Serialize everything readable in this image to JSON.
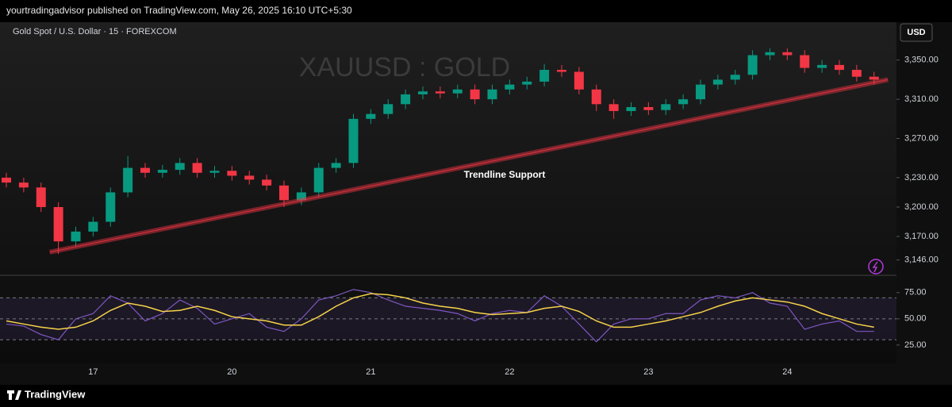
{
  "header": {
    "published": "yourtradingadvisor published on TradingView.com, May 26, 2025 16:10 UTC+5:30",
    "currency": "USD"
  },
  "footer": {
    "brand": "TradingView"
  },
  "chart_data": [
    {
      "type": "candlestick",
      "title": "Gold Spot / U.S. Dollar · 15 · FOREXCOM",
      "watermark": "XAUUSD : GOLD",
      "categories": [
        null,
        null,
        null,
        null,
        null,
        "17",
        null,
        null,
        null,
        null,
        null,
        null,
        null,
        "20",
        null,
        null,
        null,
        null,
        null,
        null,
        null,
        "21",
        null,
        null,
        null,
        null,
        null,
        null,
        null,
        "22",
        null,
        null,
        null,
        null,
        null,
        null,
        null,
        "23",
        null,
        null,
        null,
        null,
        null,
        null,
        null,
        "24",
        null,
        null,
        null,
        null,
        null
      ],
      "open": [
        3230,
        3225,
        3220,
        3200,
        3165,
        3175,
        3185,
        3215,
        3240,
        3235,
        3238,
        3245,
        3235,
        3237,
        3232,
        3228,
        3222,
        3207,
        3215,
        3240,
        3245,
        3290,
        3295,
        3305,
        3315,
        3318,
        3316,
        3320,
        3310,
        3320,
        3325,
        3328,
        3340,
        3338,
        3320,
        3305,
        3298,
        3302,
        3299,
        3305,
        3310,
        3325,
        3330,
        3335,
        3355,
        3358,
        3355,
        3342,
        3345,
        3340,
        3333
      ],
      "high": [
        3235,
        3230,
        3225,
        3205,
        3180,
        3190,
        3220,
        3252,
        3245,
        3243,
        3250,
        3250,
        3242,
        3242,
        3237,
        3233,
        3227,
        3220,
        3245,
        3250,
        3295,
        3300,
        3310,
        3320,
        3323,
        3323,
        3325,
        3325,
        3325,
        3330,
        3333,
        3346,
        3345,
        3343,
        3325,
        3310,
        3307,
        3307,
        3310,
        3315,
        3330,
        3335,
        3340,
        3360,
        3362,
        3362,
        3360,
        3350,
        3350,
        3345,
        3338
      ],
      "low": [
        3220,
        3215,
        3195,
        3152,
        3160,
        3170,
        3180,
        3210,
        3230,
        3230,
        3233,
        3230,
        3230,
        3227,
        3223,
        3217,
        3200,
        3202,
        3210,
        3235,
        3240,
        3285,
        3290,
        3300,
        3310,
        3311,
        3311,
        3305,
        3305,
        3315,
        3320,
        3323,
        3333,
        3315,
        3298,
        3290,
        3293,
        3294,
        3294,
        3300,
        3305,
        3320,
        3325,
        3330,
        3350,
        3350,
        3337,
        3337,
        3335,
        3328,
        3325
      ],
      "close": [
        3225,
        3220,
        3200,
        3165,
        3175,
        3185,
        3215,
        3240,
        3235,
        3238,
        3245,
        3235,
        3237,
        3232,
        3228,
        3222,
        3207,
        3215,
        3240,
        3245,
        3290,
        3295,
        3305,
        3315,
        3318,
        3316,
        3320,
        3310,
        3320,
        3325,
        3328,
        3340,
        3338,
        3320,
        3305,
        3298,
        3302,
        3299,
        3305,
        3310,
        3325,
        3330,
        3335,
        3355,
        3358,
        3355,
        3342,
        3345,
        3340,
        3333,
        3330
      ],
      "up_color": "#089981",
      "down_color": "#f23645",
      "trendline": {
        "label": "Trendline Support",
        "x": [
          2.5,
          50.8
        ],
        "y": [
          3154,
          3330
        ],
        "color": "#f23645"
      },
      "ylim": [
        3132,
        3387
      ],
      "yticks": [
        {
          "value": 3146,
          "label": "3,146.00"
        },
        {
          "value": 3170,
          "label": "3,170.00"
        },
        {
          "value": 3200,
          "label": "3,200.00"
        },
        {
          "value": 3230,
          "label": "3,230.00"
        },
        {
          "value": 3270,
          "label": "3,270.00"
        },
        {
          "value": 3310,
          "label": "3,310.00"
        },
        {
          "value": 3350,
          "label": "3,350.00"
        }
      ]
    },
    {
      "type": "line",
      "series": [
        {
          "color": "#7e57c2",
          "values": [
            45,
            43,
            35,
            30,
            50,
            55,
            72,
            65,
            48,
            55,
            68,
            60,
            45,
            50,
            55,
            42,
            38,
            50,
            68,
            72,
            78,
            75,
            68,
            62,
            60,
            58,
            55,
            48,
            55,
            58,
            56,
            72,
            62,
            45,
            28,
            45,
            50,
            50,
            55,
            55,
            68,
            72,
            70,
            75,
            65,
            62,
            40,
            45,
            48,
            38,
            38
          ]
        },
        {
          "color": "#f7d34a",
          "values": [
            48,
            45,
            42,
            40,
            42,
            48,
            58,
            65,
            62,
            57,
            58,
            62,
            58,
            52,
            50,
            48,
            44,
            44,
            52,
            62,
            70,
            74,
            73,
            70,
            65,
            62,
            60,
            56,
            54,
            55,
            56,
            60,
            62,
            57,
            48,
            42,
            42,
            45,
            48,
            52,
            56,
            62,
            67,
            70,
            68,
            66,
            62,
            55,
            50,
            45,
            42
          ]
        }
      ],
      "bands": [
        30,
        50,
        70
      ],
      "ylim": [
        9,
        90
      ],
      "yticks": [
        {
          "value": 25,
          "label": "25.00"
        },
        {
          "value": 50,
          "label": "50.00"
        },
        {
          "value": 75,
          "label": "75.00"
        }
      ]
    }
  ]
}
